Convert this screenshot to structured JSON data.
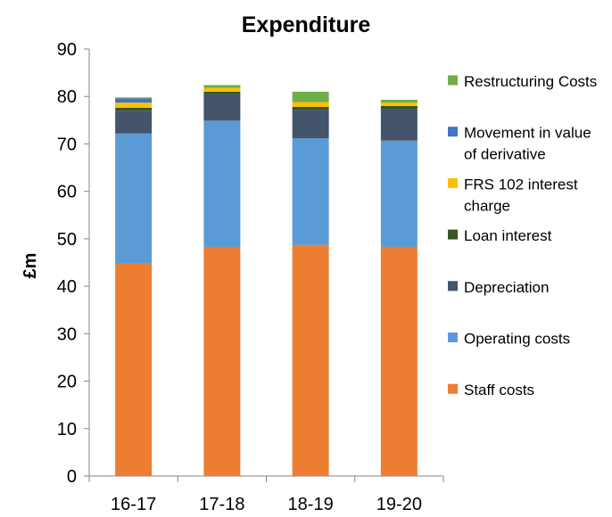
{
  "chart_data": {
    "type": "bar",
    "stacked": true,
    "title": "Expenditure",
    "ylabel": "£m",
    "xlabel": "",
    "ylim": [
      0,
      90
    ],
    "yticks": [
      0,
      10,
      20,
      30,
      40,
      50,
      60,
      70,
      80,
      90
    ],
    "grid": false,
    "legend_position": "right",
    "categories": [
      "16-17",
      "17-18",
      "18-19",
      "19-20"
    ],
    "series": [
      {
        "name": "Staff costs",
        "color": "#ED7D31",
        "values": [
          44.8,
          48.3,
          48.7,
          48.3
        ]
      },
      {
        "name": "Operating costs",
        "color": "#5B9BD5",
        "values": [
          27.4,
          26.6,
          22.5,
          22.4
        ]
      },
      {
        "name": "Depreciation",
        "color": "#44546A",
        "values": [
          4.8,
          5.6,
          6.0,
          6.7
        ]
      },
      {
        "name": "Loan interest",
        "color": "#375623",
        "values": [
          0.6,
          0.5,
          0.6,
          0.6
        ]
      },
      {
        "name": "FRS 102 interest charge",
        "color": "#FFC000",
        "values": [
          1.1,
          0.8,
          1.0,
          0.7
        ]
      },
      {
        "name": "Movement in value of derivative",
        "color": "#4472C4",
        "values": [
          0.9,
          0.0,
          0.0,
          0.0
        ]
      },
      {
        "name": "Restructuring Costs",
        "color": "#70AD47",
        "values": [
          0.2,
          0.6,
          2.2,
          0.6
        ]
      }
    ],
    "legend": [
      {
        "lines": [
          "Restructuring Costs"
        ],
        "series": 6
      },
      {
        "lines": [
          "Movement in value",
          "of derivative"
        ],
        "series": 5
      },
      {
        "lines": [
          "FRS 102 interest",
          "charge"
        ],
        "series": 4
      },
      {
        "lines": [
          "Loan interest"
        ],
        "series": 3
      },
      {
        "lines": [
          "Depreciation"
        ],
        "series": 2
      },
      {
        "lines": [
          "Operating costs"
        ],
        "series": 1
      },
      {
        "lines": [
          "Staff costs"
        ],
        "series": 0
      }
    ]
  }
}
